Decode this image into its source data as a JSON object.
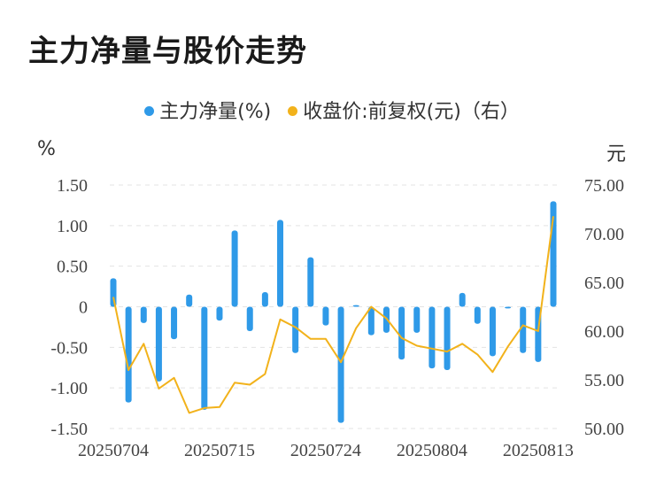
{
  "title": "主力净量与股价走势",
  "legend": [
    {
      "name": "主力净量(%)",
      "color": "#2f9ae8"
    },
    {
      "name": "收盘价:前复权(元)（右）",
      "color": "#f2b21b"
    }
  ],
  "chart_data": {
    "type": "bar+line",
    "title": "主力净量与股价走势",
    "y_left_unit": "%",
    "y_right_unit": "元",
    "y_left_ticks": [
      "1.50",
      "1.00",
      "0.50",
      "0",
      "-0.50",
      "-1.00",
      "-1.50"
    ],
    "y_left_range": [
      -1.5,
      1.5
    ],
    "y_right_ticks": [
      "75.00",
      "70.00",
      "65.00",
      "60.00",
      "55.00",
      "50.00"
    ],
    "y_right_range": [
      50,
      75
    ],
    "x_tick_labels": [
      "20250704",
      "20250715",
      "20250724",
      "20250804",
      "20250813"
    ],
    "x_tick_index": [
      0,
      7,
      14,
      21,
      28
    ],
    "grid": true,
    "legend_position": "top",
    "series": [
      {
        "name": "主力净量(%)",
        "type": "bar",
        "color": "#2f9ae8",
        "values": [
          0.35,
          -1.18,
          -0.2,
          -0.92,
          -0.4,
          0.15,
          -1.27,
          -0.17,
          0.94,
          -0.3,
          0.18,
          1.07,
          -0.57,
          0.61,
          -0.23,
          -1.43,
          0.02,
          -0.35,
          -0.32,
          -0.65,
          -0.32,
          -0.76,
          -0.78,
          0.17,
          -0.21,
          -0.61,
          -0.02,
          -0.57,
          -0.68,
          1.3
        ]
      },
      {
        "name": "收盘价:前复权(元)（右）",
        "type": "line",
        "axis": "right",
        "color": "#f2b21b",
        "values": [
          63.5,
          56.0,
          58.7,
          54.1,
          55.2,
          51.6,
          52.1,
          52.2,
          54.7,
          54.5,
          55.6,
          61.2,
          60.4,
          59.2,
          59.2,
          56.8,
          60.3,
          62.5,
          61.3,
          59.3,
          58.5,
          58.2,
          57.9,
          58.7,
          57.6,
          55.8,
          58.4,
          60.6,
          60.0,
          71.8
        ]
      }
    ]
  }
}
